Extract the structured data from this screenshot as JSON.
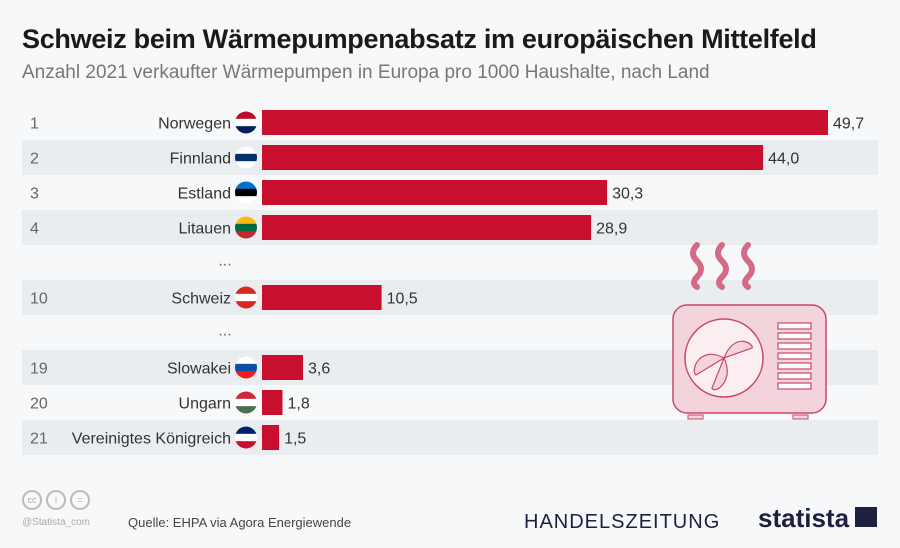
{
  "chart_data": {
    "type": "bar",
    "orientation": "horizontal",
    "title": "Schweiz beim Wärmepumpenabsatz im europäischen Mittelfeld",
    "subtitle": "Anzahl 2021 verkaufter Wärmepumpen in Europa pro 1000 Haushalte, nach Land",
    "rows": [
      {
        "rank": "1",
        "country": "Norwegen",
        "value": 49.7,
        "label": "49,7"
      },
      {
        "rank": "2",
        "country": "Finnland",
        "value": 44.0,
        "label": "44,0"
      },
      {
        "rank": "3",
        "country": "Estland",
        "value": 30.3,
        "label": "30,3"
      },
      {
        "rank": "4",
        "country": "Litauen",
        "value": 28.9,
        "label": "28,9"
      },
      {
        "ellipsis": "..."
      },
      {
        "rank": "10",
        "country": "Schweiz",
        "value": 10.5,
        "label": "10,5"
      },
      {
        "ellipsis": "..."
      },
      {
        "rank": "19",
        "country": "Slowakei",
        "value": 3.6,
        "label": "3,6"
      },
      {
        "rank": "20",
        "country": "Ungarn",
        "value": 1.8,
        "label": "1,8"
      },
      {
        "rank": "21",
        "country": "Vereinigtes Königreich",
        "value": 1.5,
        "label": "1,5"
      }
    ],
    "bar_color": "#c8102e",
    "grid": false
  },
  "footer": {
    "source": "Quelle: EHPA via Agora Energiewende",
    "handle": "@Statista_com",
    "cc_icons": [
      "cc",
      "i",
      "="
    ],
    "publisher": "HANDELSZEITUNG",
    "brand": "statista"
  },
  "illustration": "heat-pump-icon"
}
